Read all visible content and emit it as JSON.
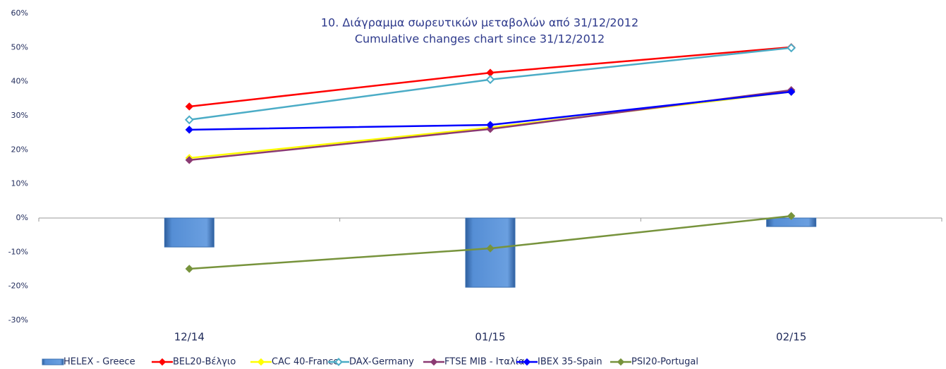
{
  "chart_data": {
    "type": "combo",
    "title": "10.  Διάγραμμα σωρευτικών μεταβολών από 31/12/2012",
    "subtitle": "Cumulative changes chart since 31/12/2012",
    "categories": [
      "12/14",
      "01/15",
      "02/15"
    ],
    "ylim": [
      -30,
      60
    ],
    "yticks": [
      {
        "value": -30,
        "label": "-30%"
      },
      {
        "value": -20,
        "label": "-20%"
      },
      {
        "value": -10,
        "label": "-10%"
      },
      {
        "value": 0,
        "label": "0%"
      },
      {
        "value": 10,
        "label": "10%"
      },
      {
        "value": 20,
        "label": "20%"
      },
      {
        "value": 30,
        "label": "30%"
      },
      {
        "value": 40,
        "label": "40%"
      },
      {
        "value": 50,
        "label": "50%"
      },
      {
        "value": 60,
        "label": "60%"
      }
    ],
    "grid": false,
    "legend": "bottom",
    "series": [
      {
        "name": "HELEX - Greece",
        "type": "bar",
        "color": "#558ed5",
        "values": [
          -8.5,
          -20.3,
          -2.5
        ]
      },
      {
        "name": "BEL20-Βέλγιο",
        "type": "line",
        "marker": "diamond",
        "color": "#ff0000",
        "values": [
          32.7,
          42.6,
          50.1
        ]
      },
      {
        "name": "CAC 40-France",
        "type": "line",
        "marker": "diamond",
        "color": "#ffff00",
        "values": [
          17.6,
          26.5,
          37
        ]
      },
      {
        "name": "DAX-Germany",
        "type": "line",
        "marker": "diamond",
        "hollow": true,
        "color": "#4bacc6",
        "values": [
          28.8,
          40.6,
          49.9
        ]
      },
      {
        "name": "FTSE MIB - Ιταλία",
        "type": "line",
        "marker": "diamond",
        "color": "#8b3a73",
        "values": [
          17,
          26.1,
          37.5
        ]
      },
      {
        "name": "IBEX 35-Spain",
        "type": "line",
        "marker": "diamond",
        "color": "#0000ff",
        "values": [
          25.9,
          27.3,
          37
        ]
      },
      {
        "name": "PSI20-Portugal",
        "type": "line",
        "marker": "diamond",
        "color": "#77933c",
        "values": [
          -14.9,
          -8.9,
          0.6
        ]
      }
    ]
  }
}
